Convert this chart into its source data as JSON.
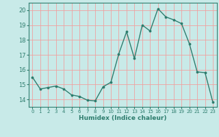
{
  "x": [
    0,
    1,
    2,
    3,
    4,
    5,
    6,
    7,
    8,
    9,
    10,
    11,
    12,
    13,
    14,
    15,
    16,
    17,
    18,
    19,
    20,
    21,
    22,
    23
  ],
  "y": [
    15.5,
    14.7,
    14.8,
    14.9,
    14.7,
    14.3,
    14.2,
    13.95,
    13.9,
    14.85,
    15.15,
    17.05,
    18.55,
    16.75,
    19.0,
    18.6,
    20.1,
    19.55,
    19.35,
    19.1,
    17.75,
    15.85,
    15.8,
    13.8
  ],
  "xlabel": "Humidex (Indice chaleur)",
  "ylabel": "",
  "ylim": [
    13.5,
    20.5
  ],
  "xlim": [
    -0.5,
    23.5
  ],
  "line_color": "#2e7d6e",
  "marker_color": "#2e7d6e",
  "bg_color": "#c8eae8",
  "grid_color": "#f0a0a0",
  "axis_color": "#2e7d6e",
  "tick_color": "#2e7d6e",
  "yticks": [
    14,
    15,
    16,
    17,
    18,
    19,
    20
  ],
  "xticks": [
    0,
    1,
    2,
    3,
    4,
    5,
    6,
    7,
    8,
    9,
    10,
    11,
    12,
    13,
    14,
    15,
    16,
    17,
    18,
    19,
    20,
    21,
    22,
    23
  ]
}
